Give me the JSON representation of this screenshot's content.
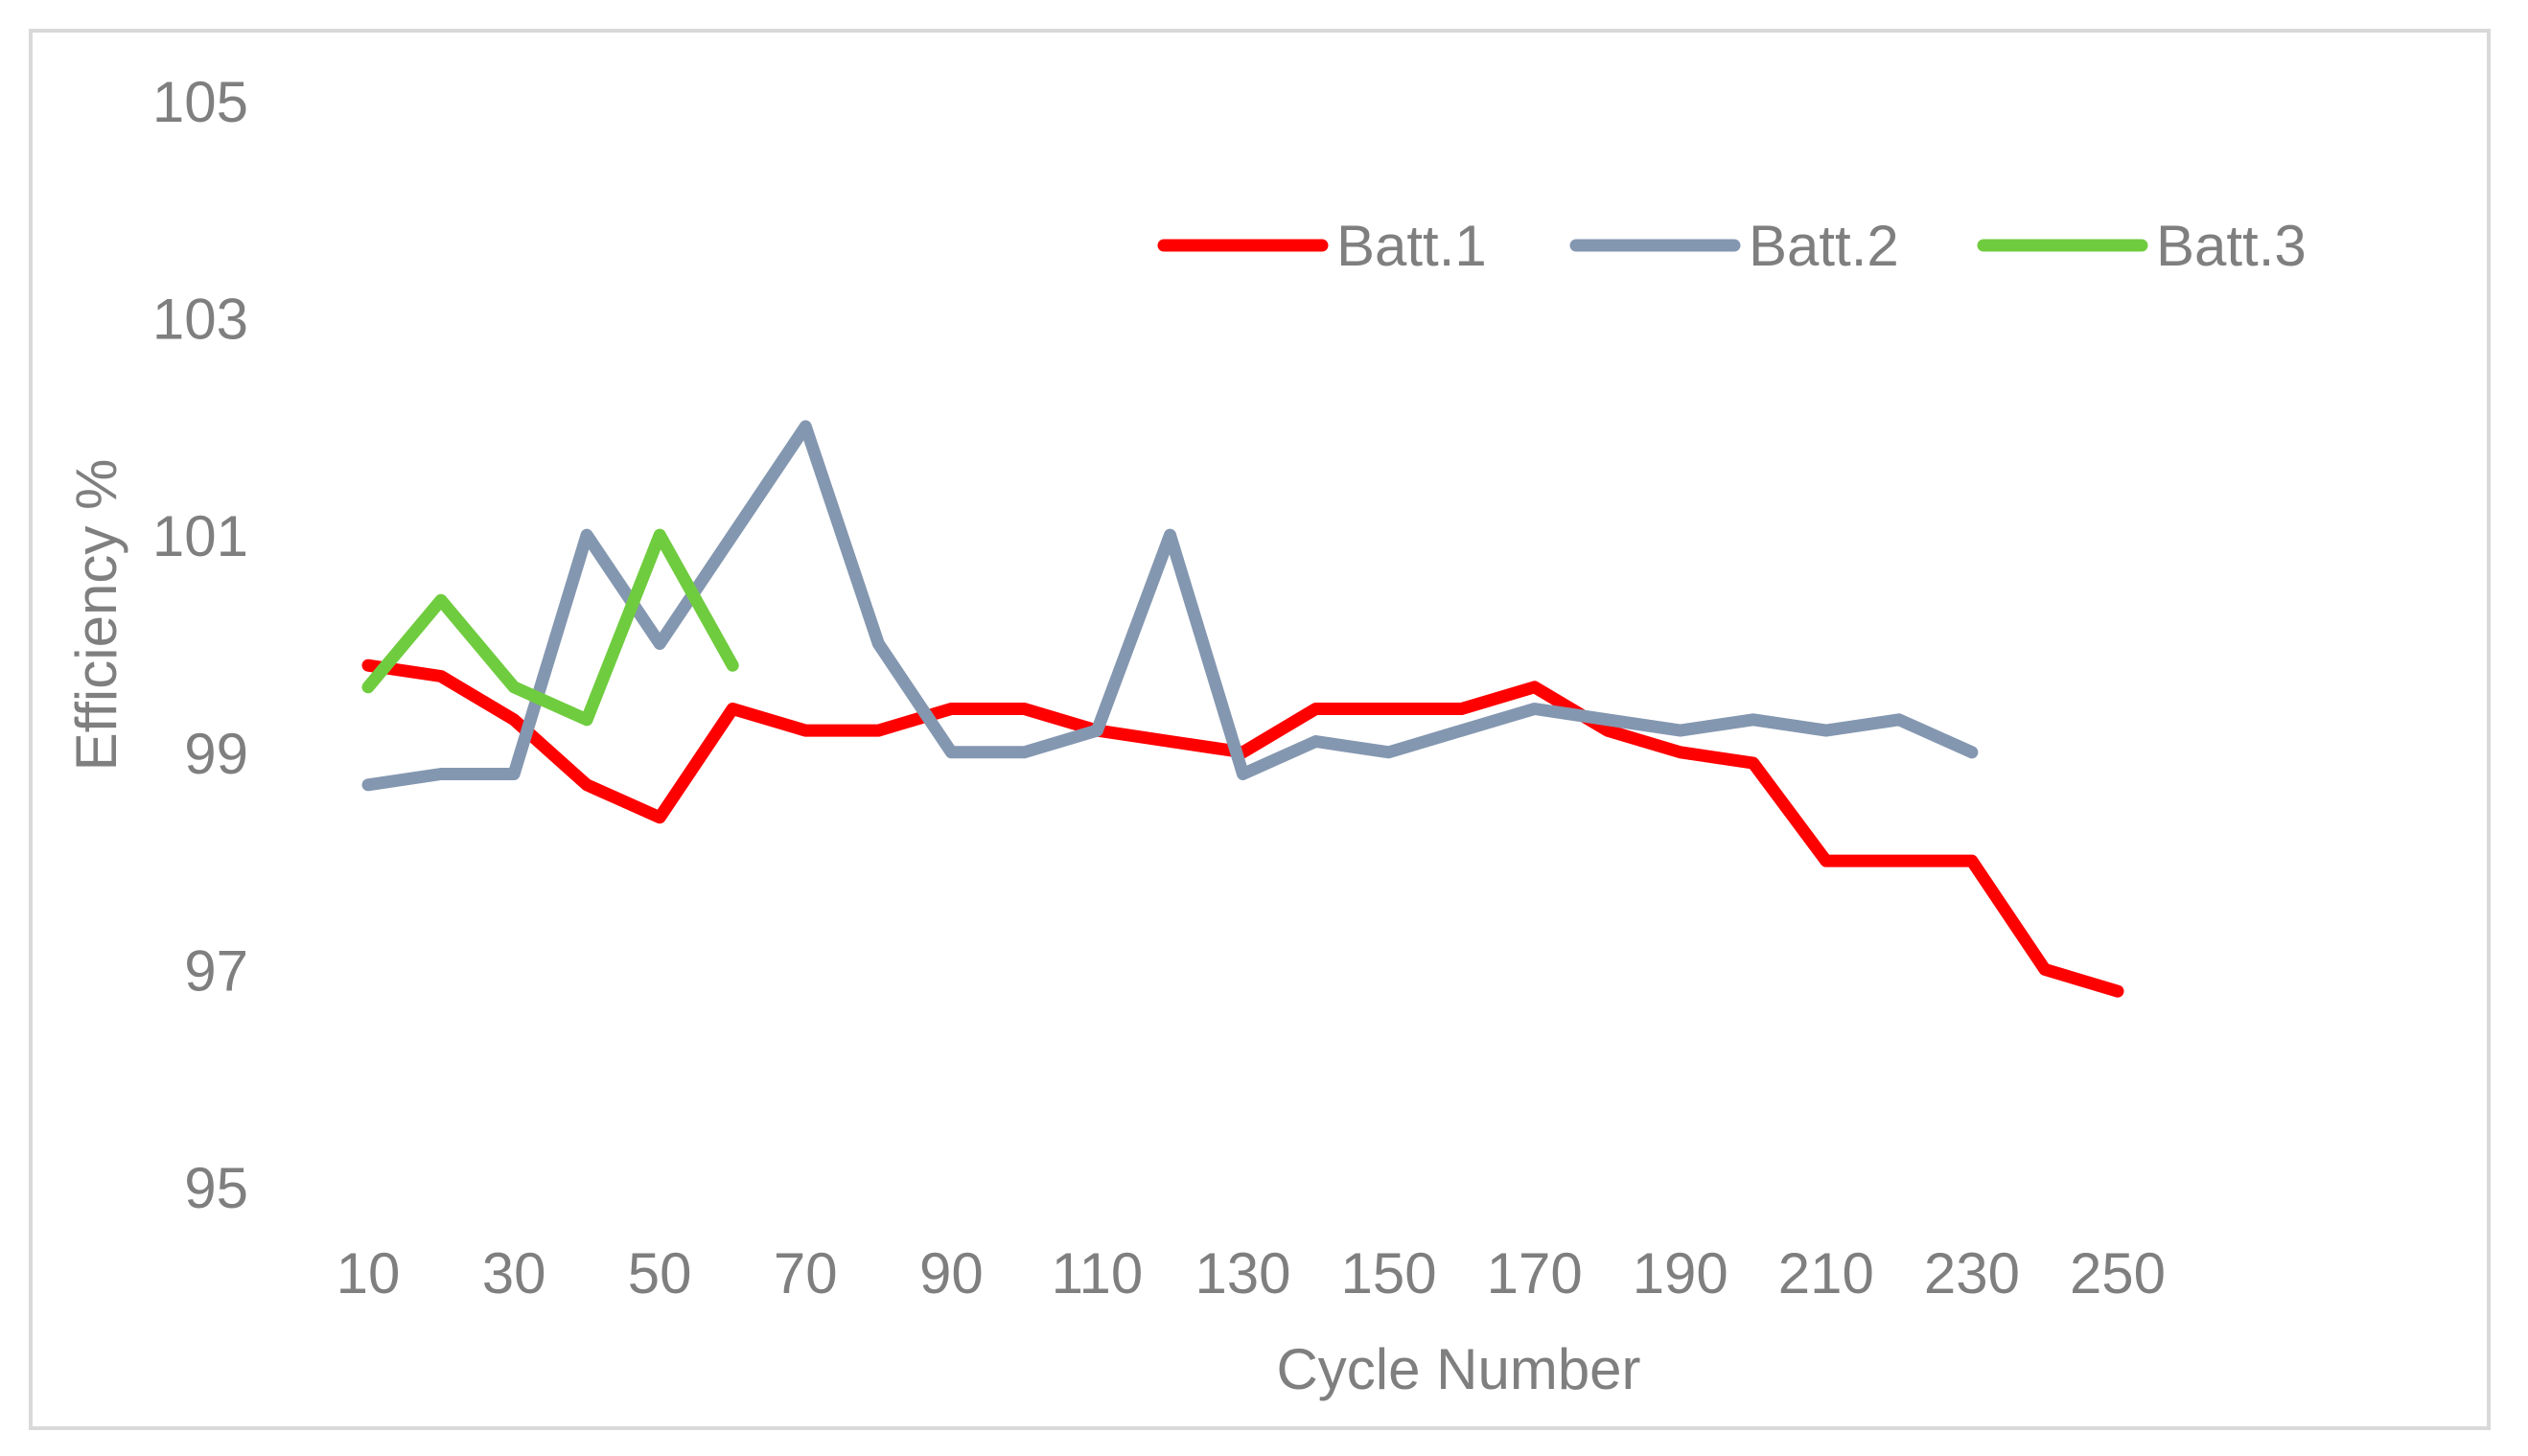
{
  "chart_data": {
    "type": "line",
    "title": "",
    "xlabel": "Cycle Number",
    "ylabel": "Efficiency %",
    "ylim": [
      95,
      105
    ],
    "yticks": [
      95,
      97,
      99,
      101,
      103,
      105
    ],
    "xticks": [
      "10",
      "30",
      "50",
      "70",
      "90",
      "110",
      "130",
      "150",
      "170",
      "190",
      "210",
      "230",
      "250"
    ],
    "x": [
      10,
      20,
      30,
      40,
      50,
      60,
      70,
      80,
      90,
      100,
      110,
      120,
      130,
      140,
      150,
      160,
      170,
      180,
      190,
      200,
      210,
      220,
      230,
      240,
      250
    ],
    "grid": false,
    "legend_position": "top-right",
    "series": [
      {
        "name": "Batt.1",
        "color": "#ff0000",
        "values": [
          99.8,
          99.7,
          99.3,
          98.7,
          98.4,
          99.4,
          99.2,
          99.2,
          99.4,
          99.4,
          99.2,
          99.1,
          99.0,
          99.4,
          99.4,
          99.4,
          99.6,
          99.2,
          99.0,
          98.9,
          98.0,
          98.0,
          98.0,
          97.0,
          96.8
        ]
      },
      {
        "name": "Batt.2",
        "color": "#8497b0",
        "values": [
          98.7,
          98.8,
          98.8,
          101.0,
          100.0,
          101.0,
          102.0,
          100.0,
          99.0,
          99.0,
          99.2,
          101.0,
          98.8,
          99.1,
          99.0,
          99.2,
          99.4,
          99.3,
          99.2,
          99.3,
          99.2,
          99.3,
          99.0,
          null,
          null
        ]
      },
      {
        "name": "Batt.3",
        "color": "#70cc3f",
        "values": [
          99.6,
          100.4,
          99.6,
          99.3,
          101.0,
          99.8,
          null,
          null,
          null,
          null,
          null,
          null,
          null,
          null,
          null,
          null,
          null,
          null,
          null,
          null,
          null,
          null,
          null,
          null,
          null
        ]
      }
    ]
  }
}
